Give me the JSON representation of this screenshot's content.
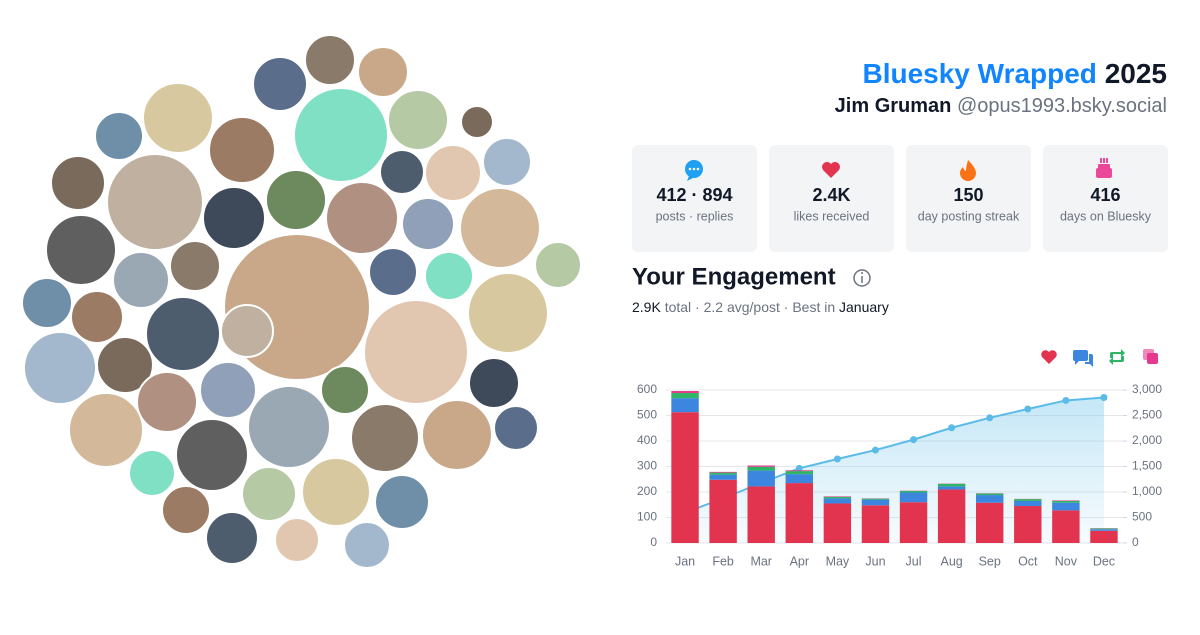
{
  "header": {
    "title": "Bluesky Wrapped",
    "year": "2025",
    "name": "Jim Gruman",
    "handle": "@opus1993.bsky.social"
  },
  "stats": [
    {
      "value": "412 · 894",
      "label": "posts · replies"
    },
    {
      "value": "2.4K",
      "label": "likes received"
    },
    {
      "value": "150",
      "label": "day posting streak"
    },
    {
      "value": "416",
      "label": "days on Bluesky"
    }
  ],
  "summary": {
    "total": "2.9K",
    "middle": "total · 2.2 avg/post · Best in",
    "best": "January"
  },
  "chart_data": {
    "type": "bar",
    "stacked": true,
    "title": "Your Engagement",
    "categories": [
      "Jan",
      "Feb",
      "Mar",
      "Apr",
      "May",
      "Jun",
      "Jul",
      "Aug",
      "Sep",
      "Oct",
      "Nov",
      "Dec"
    ],
    "series": [
      {
        "color": "#e3344f",
        "values": [
          513,
          248,
          222,
          235,
          155,
          148,
          160,
          210,
          158,
          145,
          128,
          48
        ]
      },
      {
        "color": "#3d86e0",
        "values": [
          55,
          20,
          62,
          35,
          20,
          22,
          38,
          12,
          30,
          20,
          30,
          6
        ]
      },
      {
        "color": "#2fb565",
        "values": [
          20,
          8,
          15,
          12,
          6,
          4,
          6,
          10,
          6,
          7,
          7,
          3
        ]
      },
      {
        "color": "#e6388c",
        "values": [
          8,
          3,
          5,
          3,
          2,
          1,
          1,
          1,
          1,
          1,
          2,
          1
        ]
      },
      {
        "type": "line",
        "axis": "y2",
        "color": "#5bbbe8",
        "values": [
          596,
          875,
          1179,
          1464,
          1647,
          1822,
          2027,
          2260,
          2455,
          2628,
          2795,
          2853
        ]
      }
    ],
    "ylim": [
      0,
      600
    ],
    "yticks": [
      0,
      100,
      200,
      300,
      400,
      500,
      600
    ],
    "y2lim": [
      0,
      3000
    ],
    "y2ticks": [
      0,
      500,
      {
        "value": 1000,
        "label": "1,000"
      },
      {
        "value": 1500,
        "label": "1,500"
      },
      {
        "value": 2000,
        "label": "2,000"
      },
      {
        "value": 2500,
        "label": "2,500"
      },
      {
        "value": 3000,
        "label": "3,000"
      }
    ],
    "grid": true
  }
}
